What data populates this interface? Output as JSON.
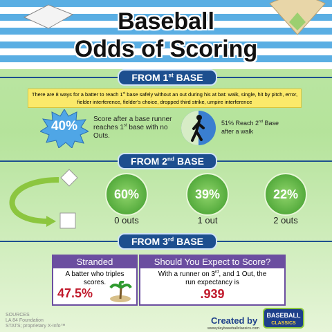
{
  "header": {
    "title_line1": "Baseball",
    "title_line2": "Odds of Scoring"
  },
  "first_base": {
    "banner": {
      "pre": "FROM 1",
      "sup": "st",
      "post": " BASE"
    },
    "intro": {
      "pre": "There are 8 ways for a batter to reach 1",
      "sup": "st",
      "post": " base safely without an out during his at bat: walk, single, hit by pitch, error, fielder interference, fielder's choice,  dropped third strike, umpire interference"
    },
    "stat": "40%",
    "stat_text": {
      "pre": "Score after a base runner reaches 1",
      "sup": "st",
      "post": " base with no Outs."
    },
    "walk_text": {
      "pre": "51% Reach 2",
      "sup": "nd",
      "post": " Base after a walk"
    }
  },
  "second_base": {
    "banner": {
      "pre": "FROM 2",
      "sup": "nd",
      "post": " BASE"
    },
    "circles": [
      {
        "value": "60%",
        "label": "0 outs"
      },
      {
        "value": "39%",
        "label": "1 out"
      },
      {
        "value": "22%",
        "label": "2 outs"
      }
    ]
  },
  "third_base": {
    "banner": {
      "pre": "FROM 3",
      "sup": "rd",
      "post": " BASE"
    },
    "stranded": {
      "title": "Stranded",
      "text": "A batter who triples scores.",
      "value": "47.5%"
    },
    "expect": {
      "title": "Should You Expect to Score?",
      "text_pre": "With a runner on 3",
      "sup": "rd",
      "text_post": ", and 1 Out, the run expectancy is",
      "value": ".939"
    }
  },
  "footer": {
    "sources": [
      "SOURCES",
      "LA 84 Foundation",
      "STATS; proprietary X-Info™"
    ],
    "created_by": "Created by",
    "url": "www.playbaseballclassics.com",
    "logo": [
      "BASEBALL",
      "CLASSICS"
    ]
  }
}
